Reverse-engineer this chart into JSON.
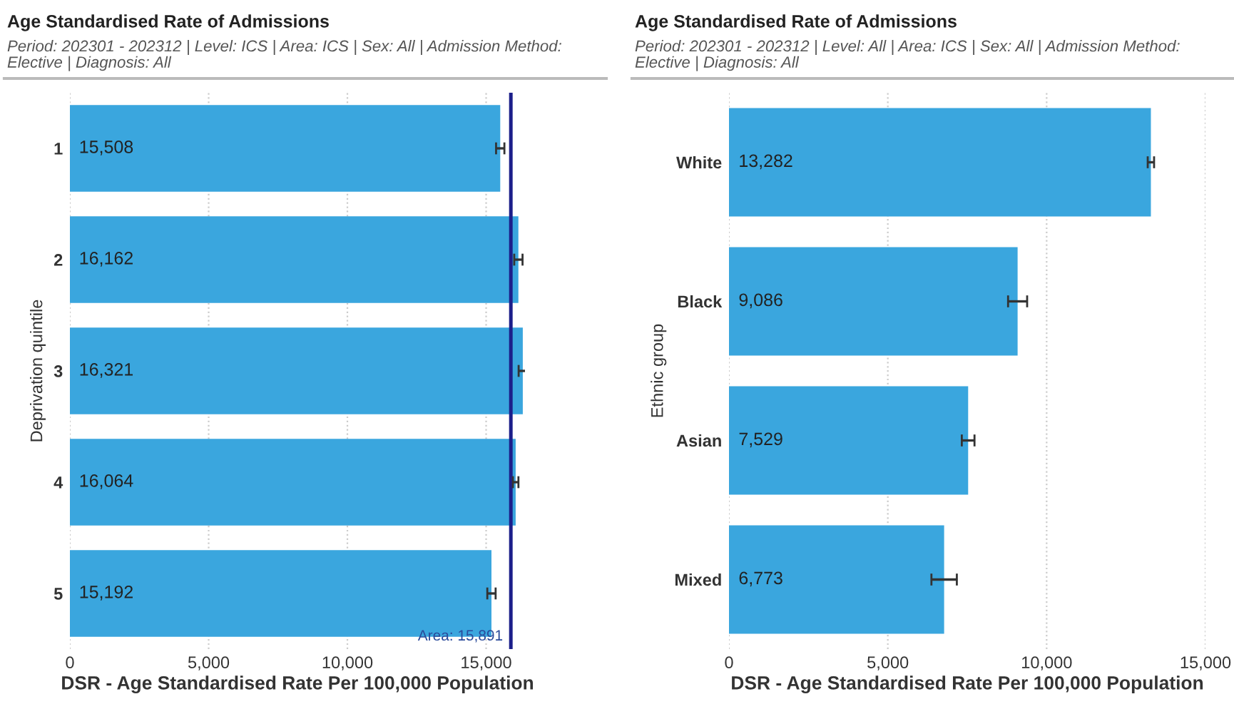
{
  "chart_data": [
    {
      "type": "bar",
      "orientation": "horizontal",
      "title": "Age Standardised Rate of Admissions",
      "subtitle": "Period: 202301 - 202312 | Level: ICS | Area: ICS | Sex: All | Admission Method: Elective | Diagnosis: All",
      "xlabel": "DSR - Age Standardised Rate Per 100,000 Population",
      "ylabel": "Deprivation quintile",
      "categories": [
        "1",
        "2",
        "3",
        "4",
        "5"
      ],
      "values": [
        15508,
        16162,
        16321,
        16064,
        15192
      ],
      "errors": [
        150,
        150,
        150,
        100,
        150
      ],
      "value_labels": [
        "15,508",
        "16,162",
        "16,321",
        "16,064",
        "15,192"
      ],
      "color": "#3aa6de",
      "xlim": [
        0,
        16400
      ],
      "xticks": [
        {
          "value": 0,
          "label": "0"
        },
        {
          "value": 5000,
          "label": "5,000"
        },
        {
          "value": 10000,
          "label": "10,000"
        },
        {
          "value": 15000,
          "label": "15,000"
        }
      ],
      "ref_lines": [
        {
          "axis": "x",
          "value": 15891,
          "label": "Area: 15,891",
          "color": "#1c1f8a"
        }
      ],
      "grid": "x",
      "legend": false
    },
    {
      "type": "bar",
      "orientation": "horizontal",
      "title": "Age Standardised Rate of Admissions",
      "subtitle": "Period: 202301 - 202312 | Level: All | Area: ICS | Sex: All | Admission Method: Elective | Diagnosis: All",
      "xlabel": "DSR - Age Standardised Rate Per 100,000 Population",
      "ylabel": "Ethnic group",
      "categories": [
        "White",
        "Black",
        "Asian",
        "Mixed"
      ],
      "values": [
        13282,
        9086,
        7529,
        6773
      ],
      "errors": [
        100,
        300,
        200,
        400
      ],
      "value_labels": [
        "13,282",
        "9,086",
        "7,529",
        "6,773"
      ],
      "color": "#3aa6de",
      "xlim": [
        0,
        15000
      ],
      "xticks": [
        {
          "value": 0,
          "label": "0"
        },
        {
          "value": 5000,
          "label": "5,000"
        },
        {
          "value": 10000,
          "label": "10,000"
        },
        {
          "value": 15000,
          "label": "15,000"
        }
      ],
      "grid": "x",
      "legend": false
    }
  ]
}
